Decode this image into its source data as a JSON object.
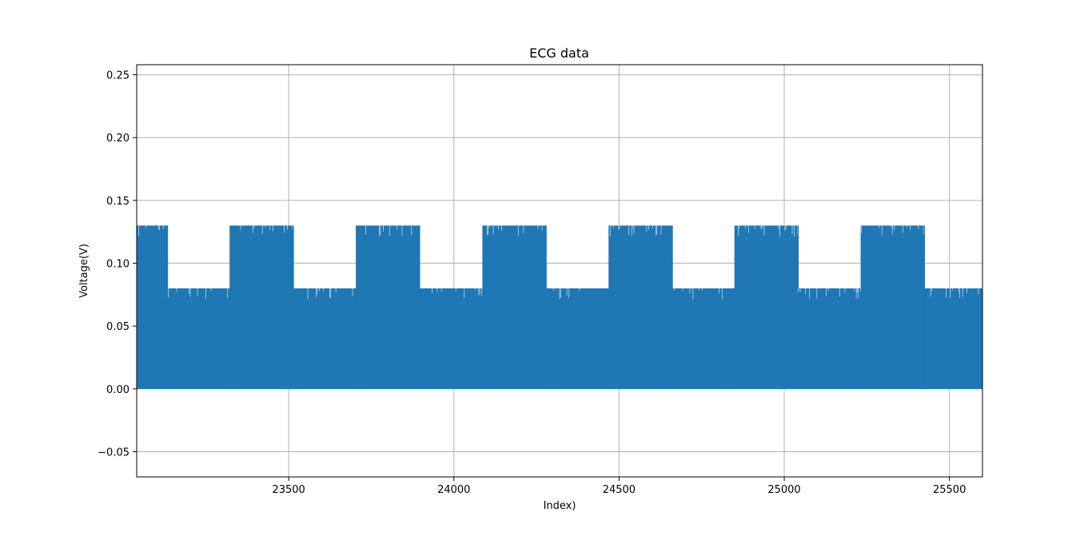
{
  "chart_data": {
    "type": "line",
    "title": "ECG data",
    "xlabel": "Index)",
    "ylabel": "Voltage(V)",
    "xlim": [
      23040,
      25600
    ],
    "ylim": [
      -0.07,
      0.258
    ],
    "x_ticks": [
      23500,
      24000,
      24500,
      25000,
      25500
    ],
    "x_tick_labels": [
      "23500",
      "24000",
      "24500",
      "25000",
      "25500"
    ],
    "y_ticks": [
      -0.05,
      0.0,
      0.05,
      0.1,
      0.15,
      0.2,
      0.25
    ],
    "y_tick_labels": [
      "−0.05",
      "0.00",
      "0.05",
      "0.10",
      "0.15",
      "0.20",
      "0.25"
    ],
    "grid": true,
    "legend": "none",
    "series": [
      {
        "color": "#1f77b4",
        "signal_min": 0.0,
        "segments": [
          {
            "x_start": 23040,
            "x_end": 23133,
            "peak": 0.13
          },
          {
            "x_start": 23133,
            "x_end": 23323,
            "peak": 0.08
          },
          {
            "x_start": 23323,
            "x_end": 23514,
            "peak": 0.13
          },
          {
            "x_start": 23514,
            "x_end": 23705,
            "peak": 0.08
          },
          {
            "x_start": 23705,
            "x_end": 23896,
            "peak": 0.13
          },
          {
            "x_start": 23896,
            "x_end": 24088,
            "peak": 0.08
          },
          {
            "x_start": 24088,
            "x_end": 24279,
            "peak": 0.13
          },
          {
            "x_start": 24279,
            "x_end": 24470,
            "peak": 0.08
          },
          {
            "x_start": 24470,
            "x_end": 24661,
            "peak": 0.13
          },
          {
            "x_start": 24661,
            "x_end": 24851,
            "peak": 0.08
          },
          {
            "x_start": 24851,
            "x_end": 25042,
            "peak": 0.13
          },
          {
            "x_start": 25042,
            "x_end": 25233,
            "peak": 0.08
          },
          {
            "x_start": 25233,
            "x_end": 25424,
            "peak": 0.13
          },
          {
            "x_start": 25424,
            "x_end": 25600,
            "peak": 0.08
          }
        ]
      }
    ]
  }
}
